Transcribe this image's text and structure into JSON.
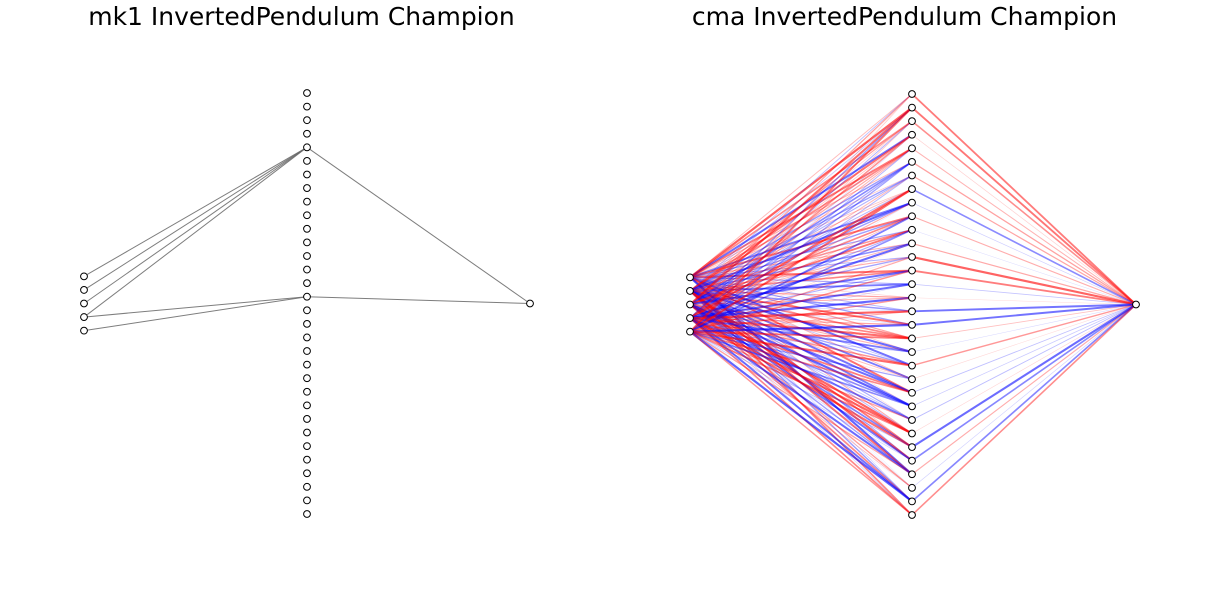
{
  "figure": {
    "panels": [
      {
        "title": "mk1 InvertedPendulum Champion",
        "layers": [
          5,
          32,
          1
        ],
        "edge_style": "gray",
        "edges": [
          {
            "from": [
              0,
              0
            ],
            "to": [
              1,
              4
            ]
          },
          {
            "from": [
              0,
              1
            ],
            "to": [
              1,
              4
            ]
          },
          {
            "from": [
              0,
              2
            ],
            "to": [
              1,
              4
            ]
          },
          {
            "from": [
              0,
              3
            ],
            "to": [
              1,
              4
            ]
          },
          {
            "from": [
              0,
              3
            ],
            "to": [
              1,
              15
            ]
          },
          {
            "from": [
              0,
              4
            ],
            "to": [
              1,
              15
            ]
          },
          {
            "from": [
              1,
              4
            ],
            "to": [
              2,
              0
            ]
          },
          {
            "from": [
              1,
              15
            ],
            "to": [
              2,
              0
            ]
          }
        ]
      },
      {
        "title": "cma InvertedPendulum Champion",
        "layers": [
          5,
          32,
          1
        ],
        "edge_style": "weighted",
        "fully_connected": true,
        "positive_color": "#0000ff",
        "negative_color": "#ff0000"
      }
    ]
  }
}
